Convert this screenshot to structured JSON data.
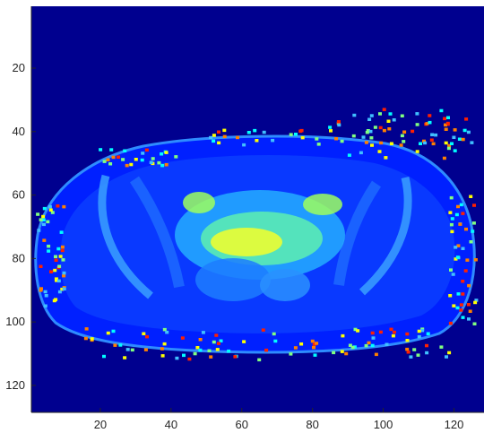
{
  "chart_data": {
    "type": "heatmap",
    "title": "",
    "xlabel": "",
    "ylabel": "",
    "colormap": "jet",
    "grid": false,
    "xlim": [
      0.5,
      128.5
    ],
    "ylim": [
      128.5,
      0.5
    ],
    "x_ticks": [
      20,
      40,
      60,
      80,
      100,
      120
    ],
    "y_ticks": [
      20,
      40,
      60,
      80,
      100,
      120
    ],
    "x_tick_labels": [
      "20",
      "40",
      "60",
      "80",
      "100",
      "120"
    ],
    "y_tick_labels": [
      "20",
      "40",
      "60",
      "80",
      "100",
      "120"
    ],
    "grid_size": [
      128,
      128
    ],
    "background_color": "#00008f"
  }
}
